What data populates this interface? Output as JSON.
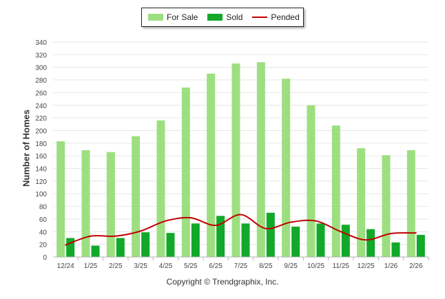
{
  "chart_data": {
    "type": "bar",
    "categories": [
      "12/24",
      "1/25",
      "2/25",
      "3/25",
      "4/25",
      "5/25",
      "6/25",
      "7/25",
      "8/25",
      "9/25",
      "10/25",
      "11/25",
      "12/25",
      "1/26",
      "2/26"
    ],
    "series": [
      {
        "name": "For Sale",
        "type": "bar",
        "color": "#9ddf80",
        "values": [
          183,
          169,
          166,
          191,
          216,
          268,
          290,
          306,
          308,
          282,
          240,
          208,
          172,
          161,
          169
        ]
      },
      {
        "name": "Sold",
        "type": "bar",
        "color": "#12a82a",
        "values": [
          30,
          18,
          30,
          39,
          38,
          53,
          65,
          53,
          70,
          48,
          53,
          51,
          44,
          23,
          35
        ]
      },
      {
        "name": "Pended",
        "type": "line",
        "color": "#c00000",
        "values": [
          19,
          33,
          33,
          41,
          57,
          62,
          50,
          67,
          45,
          55,
          57,
          40,
          27,
          37,
          38
        ]
      }
    ],
    "ylabel": "Number of Homes",
    "xlabel": "",
    "ylim": [
      0,
      340
    ],
    "yticks": [
      0,
      20,
      40,
      60,
      80,
      100,
      120,
      140,
      160,
      180,
      200,
      220,
      240,
      260,
      280,
      300,
      320,
      340
    ],
    "grid": true,
    "legend": "top-center"
  },
  "footer": "Copyright © Trendgraphix, Inc."
}
